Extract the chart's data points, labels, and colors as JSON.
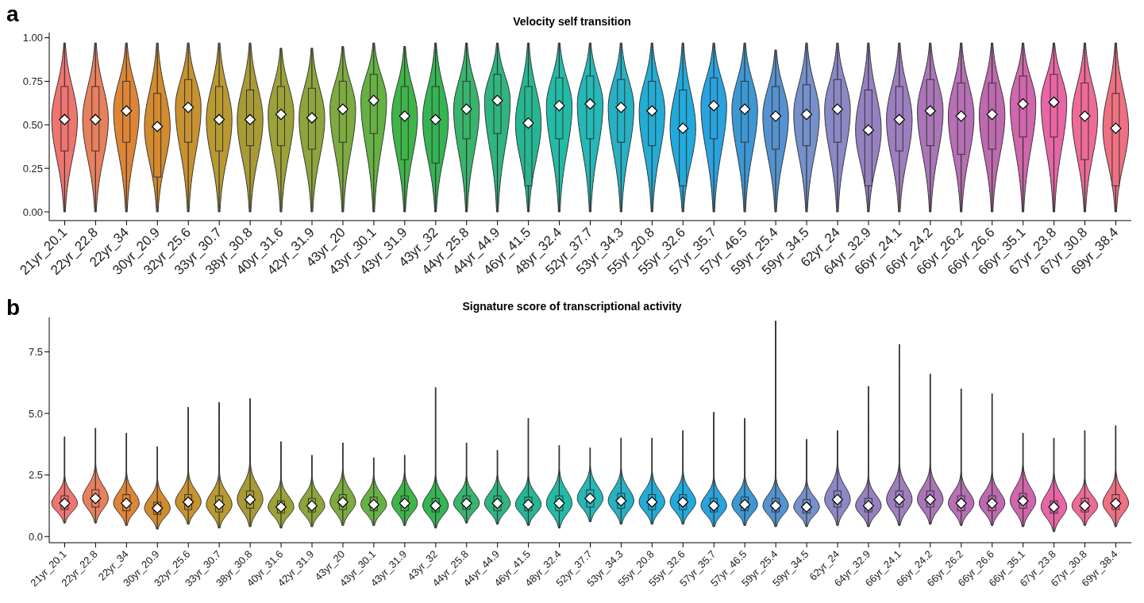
{
  "chart_data": [
    {
      "type": "box",
      "title": "Velocity self transition",
      "annotations": [
        "a"
      ],
      "categories": [
        "21yr_20.1",
        "22yr_22.8",
        "22yr_34",
        "30yr_20.9",
        "32yr_25.6",
        "33yr_30.7",
        "38yr_30.8",
        "40yr_31.6",
        "42yr_31.9",
        "43yr_20",
        "43yr_30.1",
        "43yr_31.9",
        "43yr_32",
        "44yr_25.8",
        "44yr_44.9",
        "46yr_41.5",
        "48yr_32.4",
        "52yr_37.7",
        "53yr_34.3",
        "55yr_20.8",
        "55yr_32.6",
        "57yr_35.7",
        "57yr_46.5",
        "59yr_25.4",
        "59yr_34.5",
        "62yr_24",
        "64yr_32.9",
        "66yr_24.1",
        "66yr_24.2",
        "66yr_26.2",
        "66yr_26.6",
        "66yr_35.1",
        "67yr_23.8",
        "67yr_30.8",
        "69yr_38.4"
      ],
      "colors": [
        "#ef7570",
        "#e8805e",
        "#df8536",
        "#d48a2e",
        "#c89230",
        "#b89a31",
        "#a89a35",
        "#9da238",
        "#8ea53c",
        "#7dab40",
        "#66b143",
        "#3fb549",
        "#35b454",
        "#38b46c",
        "#2fb57f",
        "#27b694",
        "#22bba6",
        "#24b8b7",
        "#26b1c5",
        "#23acd6",
        "#22aadd",
        "#29a3df",
        "#3c98d5",
        "#5592d0",
        "#7590cb",
        "#8a88c5",
        "#9581c0",
        "#9d7fbf",
        "#aa76b7",
        "#b76fb5",
        "#bd6aae",
        "#d066ab",
        "#e866a6",
        "#ee6b95",
        "#ef7080"
      ],
      "ylim": [
        -0.05,
        1.03
      ],
      "yticks": [
        {
          "value": 0,
          "label": "0.00"
        },
        {
          "value": 0.25,
          "label": "0.25"
        },
        {
          "value": 0.5,
          "label": "0.50"
        },
        {
          "value": 0.75,
          "label": "0.75"
        },
        {
          "value": 1,
          "label": "1.00"
        }
      ],
      "boxes": [
        {
          "low": 0,
          "q1": 0.35,
          "median": 0.53,
          "q3": 0.72,
          "high": 0.97
        },
        {
          "low": 0,
          "q1": 0.35,
          "median": 0.53,
          "q3": 0.72,
          "high": 0.97
        },
        {
          "low": 0,
          "q1": 0.4,
          "median": 0.58,
          "q3": 0.75,
          "high": 0.97
        },
        {
          "low": 0,
          "q1": 0.2,
          "median": 0.49,
          "q3": 0.68,
          "high": 0.97
        },
        {
          "low": 0,
          "q1": 0.4,
          "median": 0.6,
          "q3": 0.76,
          "high": 0.97
        },
        {
          "low": 0,
          "q1": 0.35,
          "median": 0.53,
          "q3": 0.72,
          "high": 0.97
        },
        {
          "low": 0,
          "q1": 0.38,
          "median": 0.53,
          "q3": 0.7,
          "high": 0.97
        },
        {
          "low": 0,
          "q1": 0.38,
          "median": 0.56,
          "q3": 0.72,
          "high": 0.94
        },
        {
          "low": 0,
          "q1": 0.36,
          "median": 0.54,
          "q3": 0.71,
          "high": 0.94
        },
        {
          "low": 0,
          "q1": 0.4,
          "median": 0.59,
          "q3": 0.75,
          "high": 0.95
        },
        {
          "low": 0,
          "q1": 0.45,
          "median": 0.64,
          "q3": 0.79,
          "high": 0.97
        },
        {
          "low": 0,
          "q1": 0.3,
          "median": 0.55,
          "q3": 0.72,
          "high": 0.95
        },
        {
          "low": 0,
          "q1": 0.28,
          "median": 0.53,
          "q3": 0.72,
          "high": 0.97
        },
        {
          "low": 0,
          "q1": 0.42,
          "median": 0.59,
          "q3": 0.75,
          "high": 0.97
        },
        {
          "low": 0,
          "q1": 0.45,
          "median": 0.64,
          "q3": 0.79,
          "high": 0.97
        },
        {
          "low": 0,
          "q1": 0.15,
          "median": 0.51,
          "q3": 0.72,
          "high": 0.97
        },
        {
          "low": 0,
          "q1": 0.42,
          "median": 0.61,
          "q3": 0.77,
          "high": 0.97
        },
        {
          "low": 0,
          "q1": 0.42,
          "median": 0.62,
          "q3": 0.78,
          "high": 0.97
        },
        {
          "low": 0,
          "q1": 0.4,
          "median": 0.6,
          "q3": 0.76,
          "high": 0.97
        },
        {
          "low": 0,
          "q1": 0.38,
          "median": 0.58,
          "q3": 0.75,
          "high": 0.97
        },
        {
          "low": 0,
          "q1": 0.15,
          "median": 0.48,
          "q3": 0.7,
          "high": 0.97
        },
        {
          "low": 0,
          "q1": 0.42,
          "median": 0.61,
          "q3": 0.77,
          "high": 0.97
        },
        {
          "low": 0,
          "q1": 0.4,
          "median": 0.59,
          "q3": 0.75,
          "high": 0.97
        },
        {
          "low": 0,
          "q1": 0.36,
          "median": 0.55,
          "q3": 0.72,
          "high": 0.93
        },
        {
          "low": 0,
          "q1": 0.38,
          "median": 0.56,
          "q3": 0.73,
          "high": 0.97
        },
        {
          "low": 0,
          "q1": 0.4,
          "median": 0.59,
          "q3": 0.76,
          "high": 0.97
        },
        {
          "low": 0,
          "q1": 0.15,
          "median": 0.47,
          "q3": 0.7,
          "high": 0.97
        },
        {
          "low": 0,
          "q1": 0.35,
          "median": 0.53,
          "q3": 0.72,
          "high": 0.97
        },
        {
          "low": 0,
          "q1": 0.38,
          "median": 0.58,
          "q3": 0.76,
          "high": 0.97
        },
        {
          "low": 0,
          "q1": 0.33,
          "median": 0.55,
          "q3": 0.74,
          "high": 0.97
        },
        {
          "low": 0,
          "q1": 0.36,
          "median": 0.56,
          "q3": 0.74,
          "high": 0.97
        },
        {
          "low": 0,
          "q1": 0.43,
          "median": 0.62,
          "q3": 0.78,
          "high": 0.97
        },
        {
          "low": 0,
          "q1": 0.43,
          "median": 0.63,
          "q3": 0.79,
          "high": 0.97
        },
        {
          "low": 0,
          "q1": 0.3,
          "median": 0.55,
          "q3": 0.74,
          "high": 0.97
        },
        {
          "low": 0,
          "q1": 0.15,
          "median": 0.48,
          "q3": 0.68,
          "high": 0.97
        }
      ]
    },
    {
      "type": "box",
      "title": "Signature score of transcriptional activity",
      "annotations": [
        "b"
      ],
      "categories": [
        "21yr_20.1",
        "22yr_22.8",
        "22yr_34",
        "30yr_20.9",
        "32yr_25.6",
        "33yr_30.7",
        "38yr_30.8",
        "40yr_31.6",
        "42yr_31.9",
        "43yr_20",
        "43yr_30.1",
        "43yr_31.9",
        "43yr_32",
        "44yr_25.8",
        "44yr_44.9",
        "46yr_41.5",
        "48yr_32.4",
        "52yr_37.7",
        "53yr_34.3",
        "55yr_20.8",
        "55yr_32.6",
        "57yr_35.7",
        "57yr_46.5",
        "59yr_25.4",
        "59yr_34.5",
        "62yr_24",
        "64yr_32.9",
        "66yr_24.1",
        "66yr_24.2",
        "66yr_26.2",
        "66yr_26.6",
        "66yr_35.1",
        "67yr_23.8",
        "67yr_30.8",
        "69yr_38.4"
      ],
      "colors": [
        "#ef7570",
        "#e8805e",
        "#df8536",
        "#d48a2e",
        "#c89230",
        "#b89a31",
        "#a89a35",
        "#9da238",
        "#8ea53c",
        "#7dab40",
        "#66b143",
        "#3fb549",
        "#35b454",
        "#38b46c",
        "#2fb57f",
        "#27b694",
        "#22bba6",
        "#24b8b7",
        "#26b1c5",
        "#23acd6",
        "#22aadd",
        "#29a3df",
        "#3c98d5",
        "#5592d0",
        "#7590cb",
        "#8a88c5",
        "#9581c0",
        "#9d7fbf",
        "#aa76b7",
        "#b76fb5",
        "#bd6aae",
        "#d066ab",
        "#e866a6",
        "#ee6b95",
        "#ef7080"
      ],
      "ylim": [
        -0.25,
        8.9
      ],
      "yticks": [
        {
          "value": 0,
          "label": "0.0"
        },
        {
          "value": 2.5,
          "label": "2.5"
        },
        {
          "value": 5,
          "label": "5.0"
        },
        {
          "value": 7.5,
          "label": "7.5"
        }
      ],
      "boxes": [
        {
          "low": 0.55,
          "q1": 1.1,
          "median": 1.35,
          "q3": 1.65,
          "high": 4.05
        },
        {
          "low": 0.55,
          "q1": 1.2,
          "median": 1.55,
          "q3": 1.9,
          "high": 4.4
        },
        {
          "low": 0.45,
          "q1": 1.05,
          "median": 1.35,
          "q3": 1.7,
          "high": 4.2
        },
        {
          "low": 0.3,
          "q1": 0.9,
          "median": 1.15,
          "q3": 1.4,
          "high": 3.65
        },
        {
          "low": 0.5,
          "q1": 1.1,
          "median": 1.4,
          "q3": 1.7,
          "high": 5.25
        },
        {
          "low": 0.35,
          "q1": 1.0,
          "median": 1.3,
          "q3": 1.65,
          "high": 5.45
        },
        {
          "low": 0.4,
          "q1": 1.15,
          "median": 1.5,
          "q3": 1.85,
          "high": 5.6
        },
        {
          "low": 0.35,
          "q1": 0.95,
          "median": 1.2,
          "q3": 1.45,
          "high": 3.85
        },
        {
          "low": 0.4,
          "q1": 1.0,
          "median": 1.25,
          "q3": 1.55,
          "high": 3.3
        },
        {
          "low": 0.45,
          "q1": 1.1,
          "median": 1.4,
          "q3": 1.7,
          "high": 3.8
        },
        {
          "low": 0.45,
          "q1": 1.05,
          "median": 1.3,
          "q3": 1.6,
          "high": 3.2
        },
        {
          "low": 0.45,
          "q1": 1.05,
          "median": 1.35,
          "q3": 1.65,
          "high": 3.3
        },
        {
          "low": 0.35,
          "q1": 1.0,
          "median": 1.25,
          "q3": 1.55,
          "high": 6.05
        },
        {
          "low": 0.55,
          "q1": 1.1,
          "median": 1.35,
          "q3": 1.65,
          "high": 3.8
        },
        {
          "low": 0.5,
          "q1": 1.05,
          "median": 1.35,
          "q3": 1.65,
          "high": 3.5
        },
        {
          "low": 0.45,
          "q1": 1.05,
          "median": 1.3,
          "q3": 1.6,
          "high": 4.8
        },
        {
          "low": 0.35,
          "q1": 1.05,
          "median": 1.35,
          "q3": 1.65,
          "high": 3.7
        },
        {
          "low": 0.6,
          "q1": 1.2,
          "median": 1.55,
          "q3": 1.9,
          "high": 3.6
        },
        {
          "low": 0.5,
          "q1": 1.15,
          "median": 1.45,
          "q3": 1.75,
          "high": 4.0
        },
        {
          "low": 0.5,
          "q1": 1.1,
          "median": 1.4,
          "q3": 1.7,
          "high": 4.0
        },
        {
          "low": 0.5,
          "q1": 1.1,
          "median": 1.4,
          "q3": 1.7,
          "high": 4.3
        },
        {
          "low": 0.4,
          "q1": 1.0,
          "median": 1.25,
          "q3": 1.55,
          "high": 5.05
        },
        {
          "low": 0.45,
          "q1": 1.05,
          "median": 1.3,
          "q3": 1.6,
          "high": 4.8
        },
        {
          "low": 0.4,
          "q1": 1.0,
          "median": 1.25,
          "q3": 1.55,
          "high": 8.75
        },
        {
          "low": 0.4,
          "q1": 0.95,
          "median": 1.2,
          "q3": 1.5,
          "high": 3.95
        },
        {
          "low": 0.45,
          "q1": 1.2,
          "median": 1.5,
          "q3": 1.85,
          "high": 4.3
        },
        {
          "low": 0.4,
          "q1": 1.0,
          "median": 1.25,
          "q3": 1.55,
          "high": 6.1
        },
        {
          "low": 0.45,
          "q1": 1.2,
          "median": 1.5,
          "q3": 1.85,
          "high": 7.8
        },
        {
          "low": 0.5,
          "q1": 1.2,
          "median": 1.5,
          "q3": 1.85,
          "high": 6.6
        },
        {
          "low": 0.45,
          "q1": 1.05,
          "median": 1.35,
          "q3": 1.65,
          "high": 6.0
        },
        {
          "low": 0.45,
          "q1": 1.05,
          "median": 1.35,
          "q3": 1.65,
          "high": 5.8
        },
        {
          "low": 0.4,
          "q1": 1.15,
          "median": 1.45,
          "q3": 1.75,
          "high": 4.2
        },
        {
          "low": 0.2,
          "q1": 0.95,
          "median": 1.2,
          "q3": 1.45,
          "high": 4.0
        },
        {
          "low": 0.45,
          "q1": 1.0,
          "median": 1.25,
          "q3": 1.55,
          "high": 4.3
        },
        {
          "low": 0.4,
          "q1": 1.1,
          "median": 1.35,
          "q3": 1.7,
          "high": 4.5
        }
      ]
    }
  ]
}
